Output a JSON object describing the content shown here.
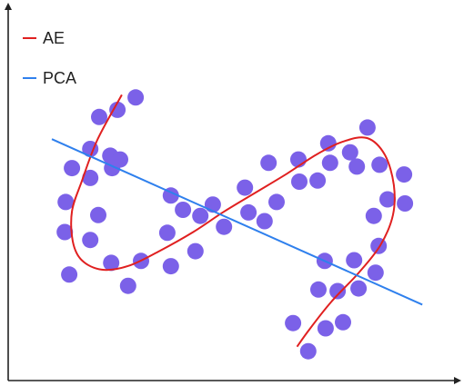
{
  "chart_data": {
    "type": "scatter",
    "title": "",
    "xlabel": "",
    "ylabel": "",
    "xlim": [
      0,
      100
    ],
    "ylim": [
      0,
      100
    ],
    "grid": false,
    "axis_ticks": false,
    "legend_position": "top-left",
    "marker_color": "#7B61E8",
    "points": [
      [
        28.6,
        75.3
      ],
      [
        24.5,
        72.0
      ],
      [
        20.4,
        70.1
      ],
      [
        18.4,
        61.6
      ],
      [
        22.9,
        59.8
      ],
      [
        25.1,
        58.8
      ],
      [
        23.3,
        56.5
      ],
      [
        14.3,
        56.5
      ],
      [
        18.4,
        53.9
      ],
      [
        12.9,
        47.5
      ],
      [
        20.2,
        44.0
      ],
      [
        12.7,
        39.5
      ],
      [
        18.4,
        37.4
      ],
      [
        13.7,
        28.2
      ],
      [
        23.1,
        31.3
      ],
      [
        29.8,
        31.8
      ],
      [
        36.5,
        49.2
      ],
      [
        39.2,
        45.4
      ],
      [
        43.1,
        43.8
      ],
      [
        45.9,
        46.8
      ],
      [
        35.7,
        39.3
      ],
      [
        48.4,
        40.9
      ],
      [
        42.0,
        34.4
      ],
      [
        36.5,
        30.4
      ],
      [
        26.9,
        25.2
      ],
      [
        53.1,
        51.3
      ],
      [
        53.9,
        44.7
      ],
      [
        57.5,
        42.4
      ],
      [
        60.2,
        47.5
      ],
      [
        58.4,
        57.9
      ],
      [
        65.1,
        58.8
      ],
      [
        65.3,
        52.9
      ],
      [
        69.4,
        53.2
      ],
      [
        71.8,
        63.1
      ],
      [
        72.2,
        57.9
      ],
      [
        76.7,
        60.7
      ],
      [
        78.2,
        56.9
      ],
      [
        80.6,
        67.3
      ],
      [
        83.3,
        57.4
      ],
      [
        88.8,
        54.8
      ],
      [
        85.1,
        48.2
      ],
      [
        89.0,
        47.1
      ],
      [
        82.0,
        43.8
      ],
      [
        83.1,
        35.8
      ],
      [
        77.6,
        32.0
      ],
      [
        71.0,
        31.8
      ],
      [
        69.6,
        24.2
      ],
      [
        73.9,
        23.8
      ],
      [
        78.6,
        24.5
      ],
      [
        82.4,
        28.7
      ],
      [
        63.9,
        15.3
      ],
      [
        71.2,
        13.9
      ],
      [
        75.1,
        15.5
      ],
      [
        67.3,
        7.8
      ]
    ],
    "series": [
      {
        "name": "AE",
        "kind": "curve",
        "color": "#E02020",
        "x": [
          25.5,
          20.0,
          16.5,
          14.3,
          14.5,
          16.5,
          21.0,
          27.0,
          34.0,
          41.5,
          48.5,
          55.5,
          62.5,
          69.0,
          75.0,
          80.5,
          84.5,
          86.5,
          86.3,
          83.5,
          78.5,
          72.5,
          67.5,
          64.8
        ],
        "y": [
          76.0,
          64.0,
          53.0,
          45.0,
          37.0,
          32.0,
          29.5,
          30.5,
          34.5,
          39.5,
          45.0,
          50.0,
          55.0,
          60.0,
          63.5,
          64.5,
          60.0,
          52.0,
          44.0,
          36.0,
          28.5,
          21.0,
          13.5,
          9.0
        ]
      },
      {
        "name": "PCA",
        "kind": "line",
        "color": "#2F80ED",
        "x": [
          9.8,
          92.9
        ],
        "y": [
          64.2,
          20.2
        ]
      }
    ]
  }
}
